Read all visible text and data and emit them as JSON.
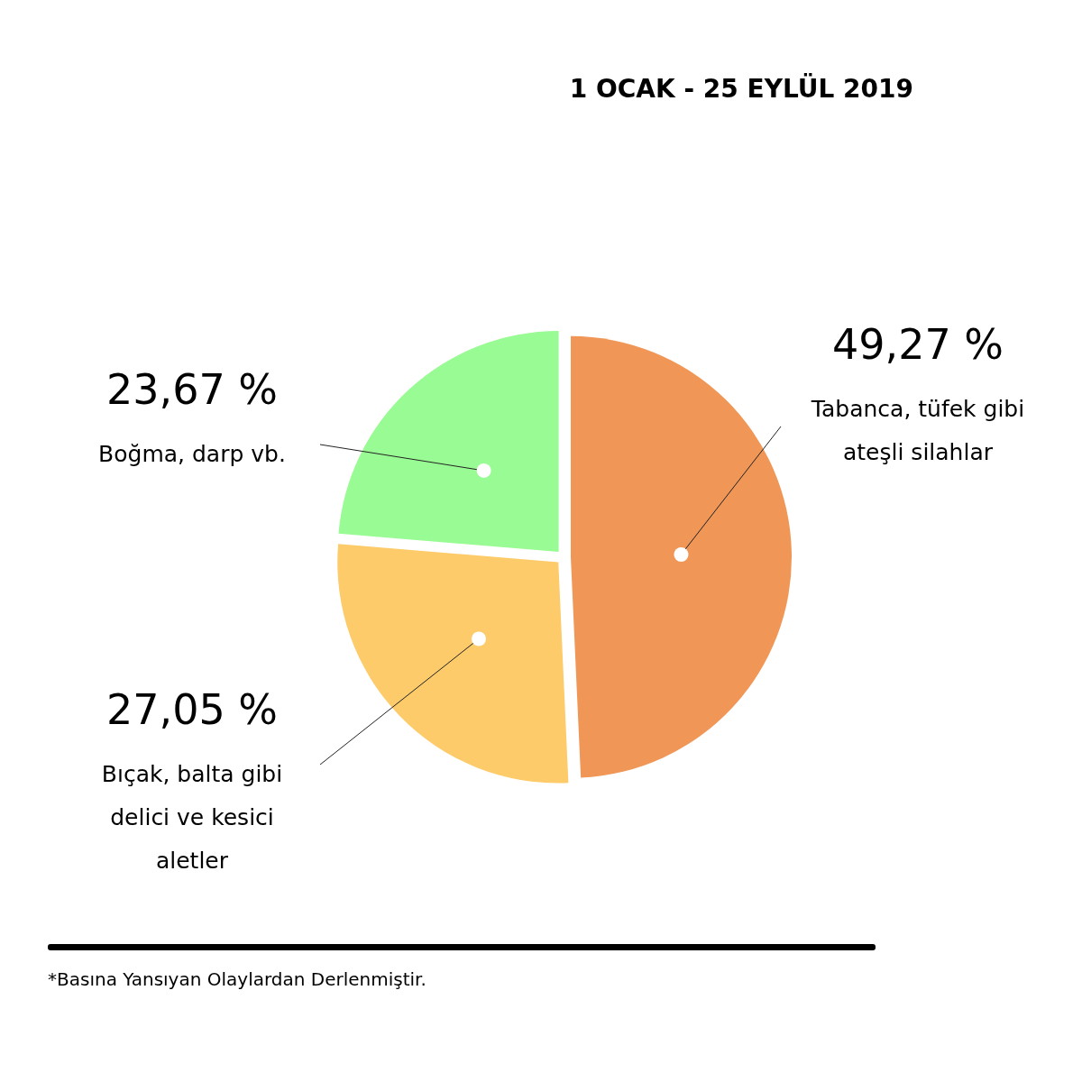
{
  "chart_data": {
    "type": "pie",
    "title": "1 OCAK - 25 EYLÜL 2019",
    "categories": [
      "Tabanca, tüfek gibi ateşli silahlar",
      "Bıçak, balta gibi delici ve kesici aletler",
      "Boğma, darp vb."
    ],
    "values": [
      49.27,
      27.05,
      23.67
    ],
    "value_labels": [
      "49,27 %",
      "27,05 %",
      "23,67 %"
    ],
    "colors": [
      "#f09656",
      "#fdcb6a",
      "#99fb93"
    ],
    "annotations": [
      "*Basına Yansıyan Olaylardan Derlenmiştir."
    ]
  }
}
